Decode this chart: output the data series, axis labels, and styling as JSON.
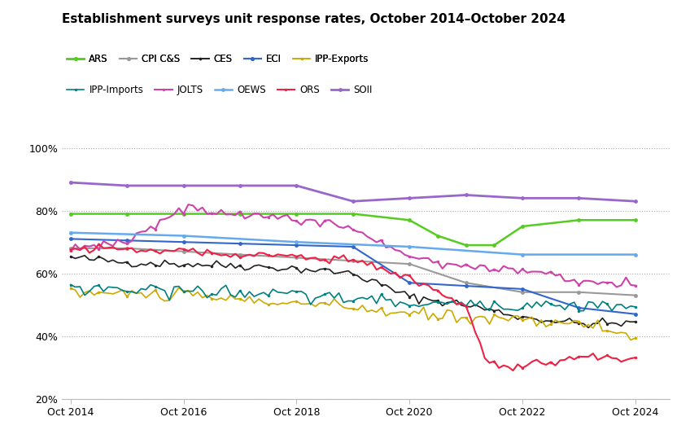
{
  "title": "Establishment surveys unit response rates, October 2014–October 2024",
  "background_color": "#ffffff",
  "ylim": [
    0.2,
    1.02
  ],
  "yticks": [
    0.2,
    0.4,
    0.6,
    0.8,
    1.0
  ],
  "xticks": [
    2014,
    2016,
    2018,
    2020,
    2022,
    2024
  ],
  "xticklabels": [
    "Oct 2014",
    "Oct 2016",
    "Oct 2018",
    "Oct 2020",
    "Oct 2022",
    "Oct 2024"
  ],
  "legend_order": [
    "ARS",
    "CPI C&S",
    "CES",
    "ECI",
    "IPP-Exports",
    "IPP-Imports",
    "JOLTS",
    "OEWS",
    "ORS",
    "SOII"
  ],
  "series_config": {
    "ARS": {
      "color": "#55cc22",
      "lw": 1.8,
      "monthly": false
    },
    "CPI C&S": {
      "color": "#999999",
      "lw": 1.5,
      "monthly": false
    },
    "CES": {
      "color": "#222222",
      "lw": 1.2,
      "monthly": true
    },
    "ECI": {
      "color": "#3366cc",
      "lw": 1.5,
      "monthly": false
    },
    "IPP-Exports": {
      "color": "#ccaa00",
      "lw": 1.2,
      "monthly": true
    },
    "IPP-Imports": {
      "color": "#008080",
      "lw": 1.2,
      "monthly": true
    },
    "JOLTS": {
      "color": "#cc44aa",
      "lw": 1.5,
      "monthly": true
    },
    "OEWS": {
      "color": "#66aaee",
      "lw": 1.8,
      "monthly": false
    },
    "ORS": {
      "color": "#ee2244",
      "lw": 1.5,
      "monthly": true
    },
    "SOII": {
      "color": "#9966cc",
      "lw": 2.0,
      "monthly": false
    }
  },
  "knots": {
    "ARS": [
      [
        2014,
        0.79
      ],
      [
        2015,
        0.79
      ],
      [
        2016,
        0.79
      ],
      [
        2017,
        0.79
      ],
      [
        2018,
        0.79
      ],
      [
        2019,
        0.79
      ],
      [
        2020,
        0.77
      ],
      [
        2020.5,
        0.72
      ],
      [
        2021,
        0.69
      ],
      [
        2021.5,
        0.69
      ],
      [
        2022,
        0.75
      ],
      [
        2023,
        0.77
      ],
      [
        2024,
        0.77
      ]
    ],
    "CPI C&S": [
      [
        2014,
        0.68
      ],
      [
        2015,
        0.68
      ],
      [
        2016,
        0.67
      ],
      [
        2017,
        0.66
      ],
      [
        2018,
        0.65
      ],
      [
        2019,
        0.64
      ],
      [
        2020,
        0.63
      ],
      [
        2021,
        0.57
      ],
      [
        2022,
        0.54
      ],
      [
        2023,
        0.54
      ],
      [
        2024,
        0.53
      ]
    ],
    "CES": [
      [
        2014,
        0.65
      ],
      [
        2015,
        0.635
      ],
      [
        2016,
        0.63
      ],
      [
        2017,
        0.625
      ],
      [
        2018,
        0.615
      ],
      [
        2019,
        0.6
      ],
      [
        2020,
        0.525
      ],
      [
        2021,
        0.5
      ],
      [
        2022,
        0.46
      ],
      [
        2023,
        0.44
      ],
      [
        2024,
        0.44
      ]
    ],
    "ECI": [
      [
        2014,
        0.71
      ],
      [
        2015,
        0.705
      ],
      [
        2016,
        0.7
      ],
      [
        2017,
        0.695
      ],
      [
        2018,
        0.69
      ],
      [
        2019,
        0.685
      ],
      [
        2020,
        0.57
      ],
      [
        2021,
        0.56
      ],
      [
        2022,
        0.55
      ],
      [
        2023,
        0.49
      ],
      [
        2024,
        0.47
      ]
    ],
    "IPP-Exports": [
      [
        2014,
        0.54
      ],
      [
        2015,
        0.535
      ],
      [
        2016,
        0.53
      ],
      [
        2017,
        0.515
      ],
      [
        2018,
        0.505
      ],
      [
        2019,
        0.49
      ],
      [
        2020,
        0.47
      ],
      [
        2021,
        0.46
      ],
      [
        2022,
        0.455
      ],
      [
        2023,
        0.44
      ],
      [
        2024,
        0.4
      ]
    ],
    "IPP-Imports": [
      [
        2014,
        0.555
      ],
      [
        2015,
        0.55
      ],
      [
        2016,
        0.545
      ],
      [
        2017,
        0.54
      ],
      [
        2018,
        0.53
      ],
      [
        2019,
        0.52
      ],
      [
        2020,
        0.505
      ],
      [
        2021,
        0.5
      ],
      [
        2022,
        0.5
      ],
      [
        2023,
        0.5
      ],
      [
        2024,
        0.49
      ]
    ],
    "JOLTS": [
      [
        2014,
        0.68
      ],
      [
        2015,
        0.7
      ],
      [
        2016,
        0.81
      ],
      [
        2017,
        0.79
      ],
      [
        2018,
        0.77
      ],
      [
        2019,
        0.75
      ],
      [
        2019.5,
        0.7
      ],
      [
        2020,
        0.655
      ],
      [
        2020.5,
        0.635
      ],
      [
        2021,
        0.625
      ],
      [
        2022,
        0.605
      ],
      [
        2022.5,
        0.6
      ],
      [
        2023,
        0.57
      ],
      [
        2024,
        0.565
      ]
    ],
    "OEWS": [
      [
        2014,
        0.73
      ],
      [
        2016,
        0.72
      ],
      [
        2018,
        0.7
      ],
      [
        2020,
        0.685
      ],
      [
        2022,
        0.66
      ],
      [
        2024,
        0.66
      ]
    ],
    "ORS": [
      [
        2014,
        0.68
      ],
      [
        2015,
        0.675
      ],
      [
        2016,
        0.67
      ],
      [
        2017,
        0.66
      ],
      [
        2018,
        0.655
      ],
      [
        2019,
        0.64
      ],
      [
        2020,
        0.59
      ],
      [
        2021,
        0.49
      ],
      [
        2021.4,
        0.31
      ],
      [
        2022,
        0.31
      ],
      [
        2022.5,
        0.315
      ],
      [
        2023,
        0.335
      ],
      [
        2024,
        0.335
      ]
    ],
    "SOII": [
      [
        2014,
        0.89
      ],
      [
        2015,
        0.88
      ],
      [
        2016,
        0.88
      ],
      [
        2017,
        0.88
      ],
      [
        2018,
        0.88
      ],
      [
        2019,
        0.83
      ],
      [
        2020,
        0.84
      ],
      [
        2021,
        0.85
      ],
      [
        2022,
        0.84
      ],
      [
        2023,
        0.84
      ],
      [
        2024,
        0.83
      ]
    ]
  }
}
